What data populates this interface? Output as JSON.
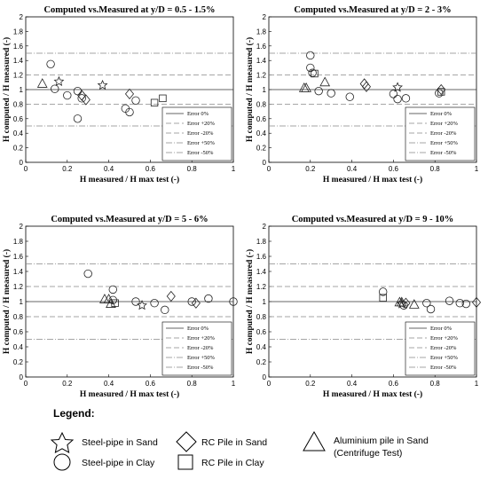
{
  "legend": {
    "title": "Legend:",
    "items": [
      {
        "marker": "star",
        "label": "Steel-pipe in Sand"
      },
      {
        "marker": "diamond",
        "label": "RC Pile in Sand"
      },
      {
        "marker": "triangle",
        "label": "Aluminium  pile in Sand",
        "label2": "(Centrifuge Test)"
      },
      {
        "marker": "circle",
        "label": "Steel-pipe in Clay"
      },
      {
        "marker": "square",
        "label": "RC Pile in Clay"
      }
    ]
  },
  "chart_data": [
    {
      "type": "scatter",
      "title": "Computed vs.Measured at y/D = 0.5 - 1.5%",
      "xlabel": "H measured / H max test (-)",
      "ylabel": "H computed / H measured (-)",
      "xlim": [
        0,
        1
      ],
      "ylim": [
        0,
        2
      ],
      "xticks": [
        "0",
        "0.2",
        "0.4",
        "0.6",
        "0.8",
        "1"
      ],
      "yticks": [
        "0",
        "0.2",
        "0.4",
        "0.6",
        "0.8",
        "1",
        "1.2",
        "1.4",
        "1.6",
        "1.8",
        "2"
      ],
      "reference_lines": [
        {
          "name": "Error 0%",
          "y": 1.0,
          "style": "solid"
        },
        {
          "name": "Error +20%",
          "y": 1.2,
          "style": "dashed"
        },
        {
          "name": "Error -20%",
          "y": 0.8,
          "style": "dashed"
        },
        {
          "name": "Error +50%",
          "y": 1.5,
          "style": "dashdot"
        },
        {
          "name": "Error -50%",
          "y": 0.5,
          "style": "dashdot"
        }
      ],
      "series": [
        {
          "name": "Steel-pipe in Sand",
          "marker": "star",
          "points": [
            [
              0.16,
              1.11
            ],
            [
              0.37,
              1.06
            ]
          ]
        },
        {
          "name": "Steel-pipe in Clay",
          "marker": "circle",
          "points": [
            [
              0.12,
              1.35
            ],
            [
              0.14,
              1.01
            ],
            [
              0.2,
              0.92
            ],
            [
              0.25,
              0.98
            ],
            [
              0.27,
              0.88
            ],
            [
              0.25,
              0.6
            ],
            [
              0.48,
              0.74
            ],
            [
              0.5,
              0.69
            ],
            [
              0.53,
              0.85
            ]
          ]
        },
        {
          "name": "RC Pile in Sand",
          "marker": "diamond",
          "points": [
            [
              0.27,
              0.92
            ],
            [
              0.29,
              0.86
            ],
            [
              0.5,
              0.94
            ]
          ]
        },
        {
          "name": "RC Pile in Clay",
          "marker": "square",
          "points": [
            [
              0.62,
              0.82
            ],
            [
              0.66,
              0.88
            ]
          ]
        },
        {
          "name": "Aluminium  pile in Sand",
          "marker": "triangle",
          "points": [
            [
              0.08,
              1.08
            ]
          ]
        }
      ]
    },
    {
      "type": "scatter",
      "title": "Computed vs.Measured at y/D = 2 - 3%",
      "xlabel": "H measured / H max test (-)",
      "ylabel": "H computed / H measured (-)",
      "xlim": [
        0,
        1
      ],
      "ylim": [
        0,
        2
      ],
      "xticks": [
        "0",
        "0.2",
        "0.4",
        "0.6",
        "0.8",
        "1"
      ],
      "yticks": [
        "0",
        "0.2",
        "0.4",
        "0.6",
        "0.8",
        "1",
        "1.2",
        "1.4",
        "1.6",
        "1.8",
        "2"
      ],
      "reference_lines": [
        {
          "name": "Error 0%",
          "y": 1.0,
          "style": "solid"
        },
        {
          "name": "Error +20%",
          "y": 1.2,
          "style": "dashed"
        },
        {
          "name": "Error -20%",
          "y": 0.8,
          "style": "dashed"
        },
        {
          "name": "Error +50%",
          "y": 1.5,
          "style": "dashdot"
        },
        {
          "name": "Error -50%",
          "y": 0.5,
          "style": "dashdot"
        }
      ],
      "series": [
        {
          "name": "Steel-pipe in Sand",
          "marker": "star",
          "points": [
            [
              0.62,
              1.03
            ]
          ]
        },
        {
          "name": "Steel-pipe in Clay",
          "marker": "circle",
          "points": [
            [
              0.2,
              1.47
            ],
            [
              0.2,
              1.3
            ],
            [
              0.21,
              1.23
            ],
            [
              0.24,
              0.98
            ],
            [
              0.3,
              0.95
            ],
            [
              0.39,
              0.9
            ],
            [
              0.6,
              0.94
            ],
            [
              0.62,
              0.87
            ],
            [
              0.66,
              0.88
            ],
            [
              0.82,
              0.95
            ]
          ]
        },
        {
          "name": "RC Pile in Sand",
          "marker": "diamond",
          "points": [
            [
              0.46,
              1.08
            ],
            [
              0.47,
              1.04
            ],
            [
              0.83,
              1.0
            ]
          ]
        },
        {
          "name": "RC Pile in Clay",
          "marker": "square",
          "points": [
            [
              0.22,
              1.22
            ],
            [
              0.83,
              0.97
            ]
          ]
        },
        {
          "name": "Aluminium  pile in Sand",
          "marker": "triangle",
          "points": [
            [
              0.17,
              1.02
            ],
            [
              0.18,
              1.02
            ],
            [
              0.27,
              1.1
            ]
          ]
        }
      ]
    },
    {
      "type": "scatter",
      "title": "Computed vs.Measured at y/D = 5 - 6%",
      "xlabel": "H measured / H max test (-)",
      "ylabel": "H computed / H measured (-)",
      "xlim": [
        0,
        1
      ],
      "ylim": [
        0,
        2
      ],
      "xticks": [
        "0",
        "0.2",
        "0.4",
        "0.6",
        "0.8",
        "1"
      ],
      "yticks": [
        "0",
        "0.2",
        "0.4",
        "0.6",
        "0.8",
        "1",
        "1.2",
        "1.4",
        "1.6",
        "1.8",
        "2"
      ],
      "reference_lines": [
        {
          "name": "Error 0%",
          "y": 1.0,
          "style": "solid"
        },
        {
          "name": "Error +20%",
          "y": 1.2,
          "style": "dashed"
        },
        {
          "name": "Error -20%",
          "y": 0.8,
          "style": "dashed"
        },
        {
          "name": "Error +50%",
          "y": 1.5,
          "style": "dashdot"
        },
        {
          "name": "Error -50%",
          "y": 0.5,
          "style": "dashdot"
        }
      ],
      "series": [
        {
          "name": "Steel-pipe in Sand",
          "marker": "star",
          "points": [
            [
              0.56,
              0.95
            ]
          ]
        },
        {
          "name": "Steel-pipe in Clay",
          "marker": "circle",
          "points": [
            [
              0.3,
              1.37
            ],
            [
              0.42,
              1.16
            ],
            [
              0.42,
              1.02
            ],
            [
              0.53,
              1.0
            ],
            [
              0.62,
              0.98
            ],
            [
              0.67,
              0.89
            ],
            [
              0.8,
              1.0
            ],
            [
              0.88,
              1.04
            ],
            [
              1.0,
              1.0
            ]
          ]
        },
        {
          "name": "RC Pile in Sand",
          "marker": "diamond",
          "points": [
            [
              0.7,
              1.07
            ],
            [
              0.82,
              0.98
            ]
          ]
        },
        {
          "name": "RC Pile in Clay",
          "marker": "square",
          "points": [
            [
              0.43,
              0.98
            ]
          ]
        },
        {
          "name": "Aluminium  pile in Sand",
          "marker": "triangle",
          "points": [
            [
              0.38,
              1.03
            ],
            [
              0.4,
              1.03
            ],
            [
              0.41,
              0.97
            ]
          ]
        }
      ]
    },
    {
      "type": "scatter",
      "title": "Computed vs.Measured at y/D = 9 - 10%",
      "xlabel": "H measured / H max test (-)",
      "ylabel": "H computed / H measured (-)",
      "xlim": [
        0,
        1
      ],
      "ylim": [
        0,
        2
      ],
      "xticks": [
        "0",
        "0.2",
        "0.4",
        "0.6",
        "0.8",
        "1"
      ],
      "yticks": [
        "0",
        "0.2",
        "0.4",
        "0.6",
        "0.8",
        "1",
        "1.2",
        "1.4",
        "1.6",
        "1.8",
        "2"
      ],
      "reference_lines": [
        {
          "name": "Error 0%",
          "y": 1.0,
          "style": "solid"
        },
        {
          "name": "Error +20%",
          "y": 1.2,
          "style": "dashed"
        },
        {
          "name": "Error -20%",
          "y": 0.8,
          "style": "dashed"
        },
        {
          "name": "Error +50%",
          "y": 1.5,
          "style": "dashdot"
        },
        {
          "name": "Error -50%",
          "y": 0.5,
          "style": "dashdot"
        }
      ],
      "series": [
        {
          "name": "Steel-pipe in Sand",
          "marker": "star",
          "points": [
            [
              0.64,
              0.97
            ]
          ]
        },
        {
          "name": "Steel-pipe in Clay",
          "marker": "circle",
          "points": [
            [
              0.55,
              1.13
            ],
            [
              0.65,
              0.95
            ],
            [
              0.76,
              0.98
            ],
            [
              0.78,
              0.9
            ],
            [
              0.87,
              1.01
            ],
            [
              0.92,
              0.98
            ],
            [
              0.95,
              0.97
            ]
          ]
        },
        {
          "name": "RC Pile in Sand",
          "marker": "diamond",
          "points": [
            [
              0.66,
              0.98
            ],
            [
              1.0,
              0.99
            ]
          ]
        },
        {
          "name": "RC Pile in Clay",
          "marker": "square",
          "points": [
            [
              0.55,
              1.05
            ]
          ]
        },
        {
          "name": "Aluminium  pile in Sand",
          "marker": "triangle",
          "points": [
            [
              0.63,
              0.99
            ],
            [
              0.64,
              0.99
            ],
            [
              0.7,
              0.96
            ]
          ]
        }
      ]
    }
  ]
}
